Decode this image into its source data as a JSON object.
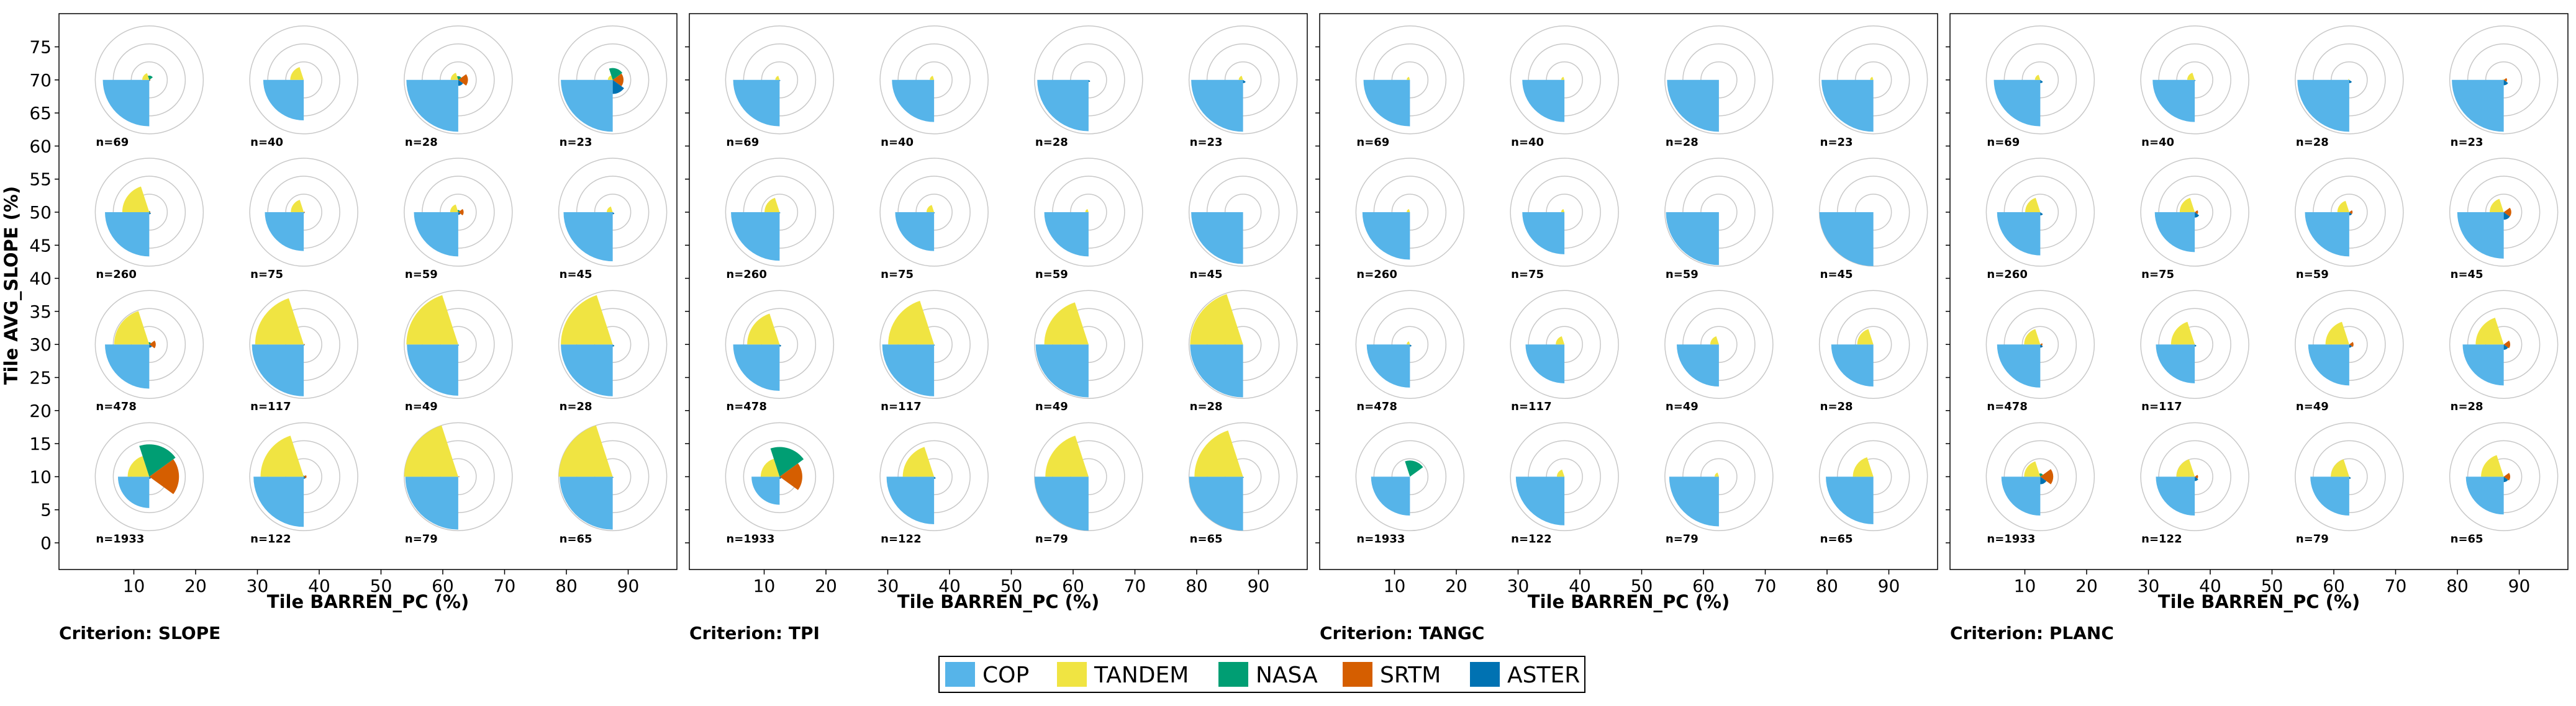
{
  "chart_data": {
    "type": "polar-wedge-grid",
    "description_of_marks": "Each small polar plot shows one wedge per DEM; wedge radius is the fraction of tiles (0-1) where that DEM ranks best for the criterion.",
    "colors": {
      "COP": "#56b4e9",
      "TANDEM": "#f0e442",
      "NASA": "#009e73",
      "SRTM": "#d55e00",
      "ASTER": "#0072b2"
    },
    "series": [
      "COP",
      "TANDEM",
      "NASA",
      "SRTM",
      "ASTER"
    ],
    "xlabel": "Tile BARREN_PC (%)",
    "ylabel": "Tile AVG_SLOPE (%)",
    "x_ticks": [
      "10",
      "20",
      "30",
      "40",
      "50",
      "60",
      "70",
      "80",
      "90"
    ],
    "y_ticks": [
      "0",
      "5",
      "10",
      "15",
      "20",
      "25",
      "30",
      "35",
      "40",
      "45",
      "50",
      "55",
      "60",
      "65",
      "70",
      "75"
    ],
    "xlim": [
      0,
      100
    ],
    "ylim": [
      -4,
      80
    ],
    "grid_centers": {
      "x": [
        12.5,
        37.5,
        62.5,
        87.5
      ],
      "y": [
        70,
        50,
        30,
        10
      ]
    },
    "counts": [
      [
        "n=69",
        "n=40",
        "n=28",
        "n=23"
      ],
      [
        "n=260",
        "n=75",
        "n=59",
        "n=45"
      ],
      [
        "n=478",
        "n=117",
        "n=49",
        "n=28"
      ],
      [
        "n=1933",
        "n=122",
        "n=79",
        "n=65"
      ]
    ],
    "panels": [
      {
        "criterion": "Criterion: SLOPE",
        "fractions": [
          [
            [
              0.86,
              0.13,
              0.08,
              0.02,
              0.02
            ],
            [
              0.75,
              0.25,
              0.0,
              0.0,
              0.0
            ],
            [
              0.96,
              0.14,
              0.07,
              0.18,
              0.11
            ],
            [
              0.96,
              0.09,
              0.22,
              0.2,
              0.26
            ]
          ],
          [
            [
              0.82,
              0.5,
              0.02,
              0.02,
              0.04
            ],
            [
              0.72,
              0.24,
              0.0,
              0.02,
              0.02
            ],
            [
              0.82,
              0.15,
              0.04,
              0.1,
              0.05
            ],
            [
              0.91,
              0.11,
              0.0,
              0.0,
              0.04
            ]
          ],
          [
            [
              0.82,
              0.65,
              0.04,
              0.12,
              0.06
            ],
            [
              0.96,
              0.9,
              0.0,
              0.02,
              0.02
            ],
            [
              0.95,
              0.96,
              0.0,
              0.0,
              0.02
            ],
            [
              0.96,
              0.96,
              0.0,
              0.0,
              0.04
            ]
          ],
          [
            [
              0.58,
              0.4,
              0.6,
              0.55,
              0.04
            ],
            [
              0.93,
              0.8,
              0.02,
              0.05,
              0.04
            ],
            [
              0.98,
              1.0,
              0.0,
              0.02,
              0.0
            ],
            [
              0.98,
              1.0,
              0.0,
              0.0,
              0.02
            ]
          ]
        ]
      },
      {
        "criterion": "Criterion: TPI",
        "fractions": [
          [
            [
              0.86,
              0.08,
              0.0,
              0.0,
              0.02
            ],
            [
              0.78,
              0.08,
              0.0,
              0.0,
              0.0
            ],
            [
              0.95,
              0.0,
              0.0,
              0.0,
              0.04
            ],
            [
              0.96,
              0.08,
              0.0,
              0.0,
              0.06
            ]
          ],
          [
            [
              0.9,
              0.28,
              0.0,
              0.0,
              0.02
            ],
            [
              0.72,
              0.14,
              0.0,
              0.0,
              0.02
            ],
            [
              0.82,
              0.06,
              0.0,
              0.0,
              0.0
            ],
            [
              0.96,
              0.0,
              0.0,
              0.0,
              0.0
            ]
          ],
          [
            [
              0.86,
              0.6,
              0.0,
              0.0,
              0.04
            ],
            [
              0.96,
              0.85,
              0.0,
              0.0,
              0.02
            ],
            [
              0.98,
              0.82,
              0.0,
              0.0,
              0.0
            ],
            [
              0.98,
              0.98,
              0.0,
              0.0,
              0.0
            ]
          ],
          [
            [
              0.52,
              0.35,
              0.55,
              0.42,
              0.04
            ],
            [
              0.88,
              0.58,
              0.0,
              0.0,
              0.04
            ],
            [
              1.0,
              0.8,
              0.0,
              0.0,
              0.0
            ],
            [
              1.0,
              0.9,
              0.0,
              0.0,
              0.02
            ]
          ]
        ]
      },
      {
        "criterion": "Criterion: TANGC",
        "fractions": [
          [
            [
              0.86,
              0.06,
              0.0,
              0.0,
              0.0
            ],
            [
              0.78,
              0.06,
              0.0,
              0.0,
              0.0
            ],
            [
              0.96,
              0.0,
              0.0,
              0.0,
              0.0
            ],
            [
              0.96,
              0.06,
              0.0,
              0.0,
              0.0
            ]
          ],
          [
            [
              0.88,
              0.06,
              0.0,
              0.0,
              0.0
            ],
            [
              0.78,
              0.06,
              0.0,
              0.0,
              0.0
            ],
            [
              0.98,
              0.0,
              0.0,
              0.0,
              0.0
            ],
            [
              1.0,
              0.0,
              0.0,
              0.0,
              0.0
            ]
          ],
          [
            [
              0.8,
              0.06,
              0.0,
              0.0,
              0.04
            ],
            [
              0.72,
              0.16,
              0.0,
              0.0,
              0.0
            ],
            [
              0.78,
              0.16,
              0.0,
              0.0,
              0.0
            ],
            [
              0.78,
              0.3,
              0.0,
              0.0,
              0.0
            ]
          ],
          [
            [
              0.72,
              0.0,
              0.3,
              0.0,
              0.0
            ],
            [
              0.9,
              0.14,
              0.0,
              0.0,
              0.0
            ],
            [
              0.92,
              0.08,
              0.0,
              0.0,
              0.0
            ],
            [
              0.88,
              0.38,
              0.0,
              0.0,
              0.0
            ]
          ]
        ]
      },
      {
        "criterion": "Criterion: PLANC",
        "fractions": [
          [
            [
              0.86,
              0.1,
              0.0,
              0.0,
              0.06
            ],
            [
              0.78,
              0.14,
              0.0,
              0.0,
              0.02
            ],
            [
              0.96,
              0.02,
              0.0,
              0.0,
              0.06
            ],
            [
              0.96,
              0.02,
              0.0,
              0.06,
              0.1
            ]
          ],
          [
            [
              0.8,
              0.28,
              0.0,
              0.0,
              0.06
            ],
            [
              0.74,
              0.28,
              0.0,
              0.06,
              0.1
            ],
            [
              0.82,
              0.22,
              0.0,
              0.06,
              0.06
            ],
            [
              0.86,
              0.26,
              0.0,
              0.14,
              0.14
            ]
          ],
          [
            [
              0.8,
              0.3,
              0.0,
              0.04,
              0.06
            ],
            [
              0.72,
              0.44,
              0.0,
              0.0,
              0.04
            ],
            [
              0.76,
              0.44,
              0.0,
              0.08,
              0.06
            ],
            [
              0.76,
              0.52,
              0.0,
              0.12,
              0.1
            ]
          ],
          [
            [
              0.72,
              0.3,
              0.06,
              0.24,
              0.14
            ],
            [
              0.72,
              0.34,
              0.0,
              0.06,
              0.08
            ],
            [
              0.72,
              0.34,
              0.0,
              0.0,
              0.04
            ],
            [
              0.7,
              0.42,
              0.0,
              0.12,
              0.1
            ]
          ]
        ]
      }
    ],
    "legend": [
      "COP",
      "TANDEM",
      "NASA",
      "SRTM",
      "ASTER"
    ],
    "legend_position": "bottom-center"
  }
}
